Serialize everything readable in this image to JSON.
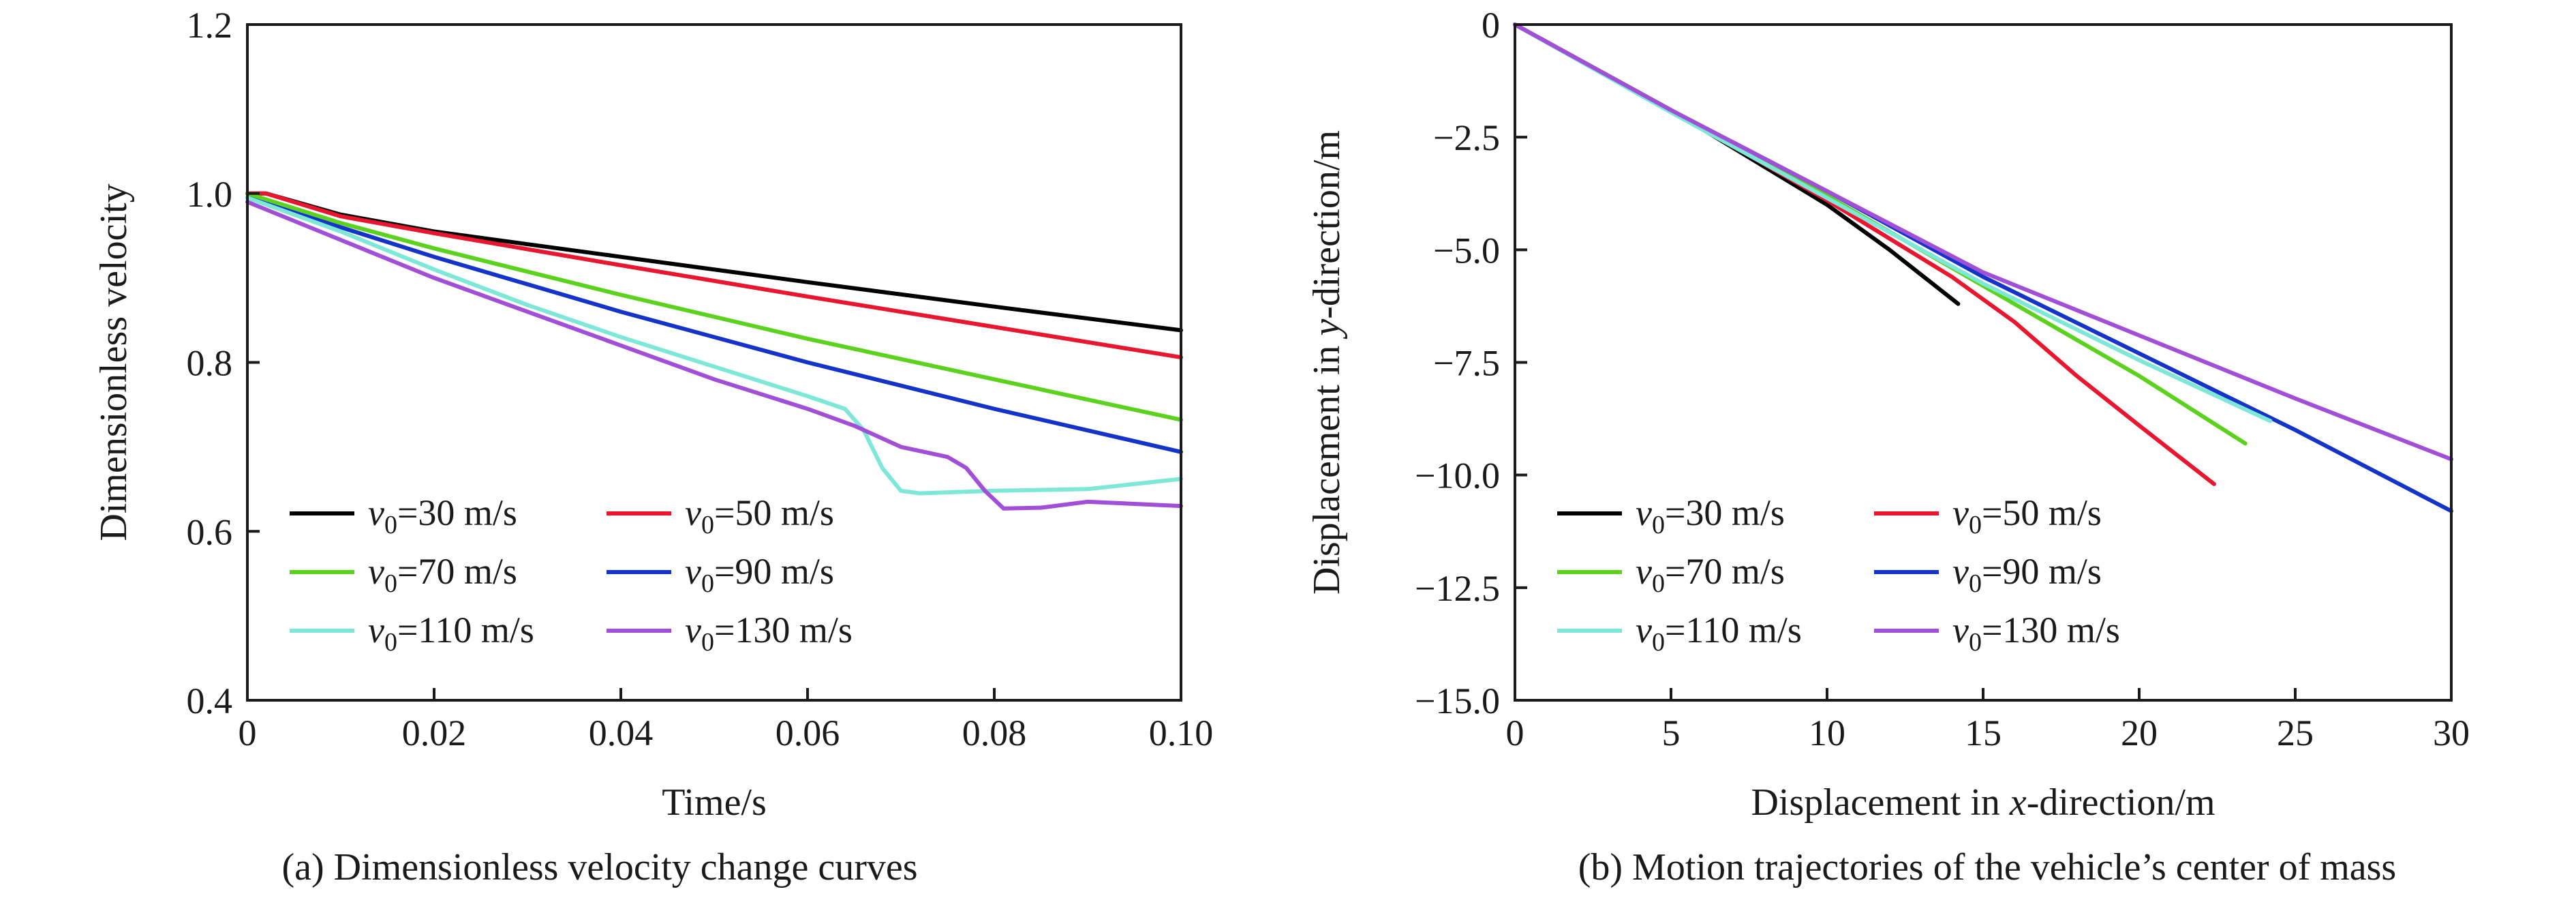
{
  "chart_data": [
    {
      "type": "line",
      "xlabel": "Time/s",
      "ylabel": "Dimensionless velocity",
      "caption": "(a) Dimensionless velocity change curves",
      "xlim": [
        0,
        0.1
      ],
      "ylim": [
        0.4,
        1.2
      ],
      "xticks": [
        "0",
        "0.02",
        "0.04",
        "0.06",
        "0.08",
        "0.10"
      ],
      "yticks": [
        "0.4",
        "0.6",
        "0.8",
        "1.0",
        "1.2"
      ],
      "grid": false,
      "legend_position": "lower-left",
      "series": [
        {
          "name": "v0=30 m/s",
          "label_var": "v",
          "label_sub": "0",
          "label_rest": "=30 m/s",
          "color": "#000000",
          "x": [
            0,
            0.002,
            0.01,
            0.02,
            0.04,
            0.06,
            0.08,
            0.1
          ],
          "y": [
            1.0,
            1.0,
            0.975,
            0.955,
            0.925,
            0.895,
            0.866,
            0.838
          ]
        },
        {
          "name": "v0=50 m/s",
          "label_var": "v",
          "label_sub": "0",
          "label_rest": "=50 m/s",
          "color": "#e8172f",
          "x": [
            0,
            0.002,
            0.01,
            0.02,
            0.04,
            0.06,
            0.08,
            0.1
          ],
          "y": [
            1.0,
            1.0,
            0.973,
            0.953,
            0.915,
            0.878,
            0.842,
            0.806
          ]
        },
        {
          "name": "v0=70 m/s",
          "label_var": "v",
          "label_sub": "0",
          "label_rest": "=70 m/s",
          "color": "#5bd21e",
          "x": [
            0,
            0.01,
            0.02,
            0.04,
            0.06,
            0.08,
            0.1
          ],
          "y": [
            1.0,
            0.965,
            0.935,
            0.88,
            0.828,
            0.78,
            0.732
          ]
        },
        {
          "name": "v0=90 m/s",
          "label_var": "v",
          "label_sub": "0",
          "label_rest": "=90 m/s",
          "color": "#1433c8",
          "x": [
            0,
            0.01,
            0.02,
            0.04,
            0.06,
            0.08,
            0.1
          ],
          "y": [
            0.995,
            0.96,
            0.925,
            0.86,
            0.8,
            0.745,
            0.694
          ]
        },
        {
          "name": "v0=110 m/s",
          "label_var": "v",
          "label_sub": "0",
          "label_rest": "=110 m/s",
          "color": "#7ee8d8",
          "x": [
            0,
            0.01,
            0.02,
            0.03,
            0.04,
            0.05,
            0.06,
            0.064,
            0.066,
            0.068,
            0.07,
            0.072,
            0.08,
            0.09,
            0.1
          ],
          "y": [
            0.995,
            0.955,
            0.91,
            0.868,
            0.83,
            0.795,
            0.76,
            0.745,
            0.72,
            0.675,
            0.648,
            0.645,
            0.648,
            0.65,
            0.662
          ]
        },
        {
          "name": "v0=130 m/s",
          "label_var": "v",
          "label_sub": "0",
          "label_rest": "=130 m/s",
          "color": "#a24fd8",
          "x": [
            0,
            0.01,
            0.02,
            0.03,
            0.04,
            0.05,
            0.06,
            0.065,
            0.07,
            0.075,
            0.077,
            0.079,
            0.081,
            0.085,
            0.09,
            0.1
          ],
          "y": [
            0.99,
            0.945,
            0.9,
            0.86,
            0.82,
            0.78,
            0.745,
            0.725,
            0.7,
            0.688,
            0.675,
            0.648,
            0.627,
            0.628,
            0.635,
            0.63
          ]
        }
      ]
    },
    {
      "type": "line",
      "xlabel_pre": "Displacement in ",
      "xlabel_var": "x",
      "xlabel_post": "-direction/m",
      "ylabel_pre": "Displacement in ",
      "ylabel_var": "y",
      "ylabel_post": "-direction/m",
      "caption": "(b) Motion trajectories of the vehicle’s center of mass",
      "xlim": [
        0,
        30
      ],
      "ylim": [
        -15.0,
        0
      ],
      "xticks": [
        "0",
        "5",
        "10",
        "15",
        "20",
        "25",
        "30"
      ],
      "yticks": [
        "0",
        "−2.5",
        "−5.0",
        "−7.5",
        "−10.0",
        "−12.5",
        "−15.0"
      ],
      "grid": false,
      "legend_position": "lower-left",
      "series": [
        {
          "name": "v0=30 m/s",
          "label_var": "v",
          "label_sub": "0",
          "label_rest": "=30 m/s",
          "color": "#000000",
          "x": [
            0,
            5,
            10,
            12,
            14.2
          ],
          "y": [
            0,
            -1.9,
            -4.0,
            -5.0,
            -6.2
          ]
        },
        {
          "name": "v0=50 m/s",
          "label_var": "v",
          "label_sub": "0",
          "label_rest": "=50 m/s",
          "color": "#e8172f",
          "x": [
            0,
            5,
            10,
            14,
            16,
            18,
            20,
            22.4
          ],
          "y": [
            0,
            -1.9,
            -3.9,
            -5.6,
            -6.6,
            -7.8,
            -8.9,
            -10.2
          ]
        },
        {
          "name": "v0=70 m/s",
          "label_var": "v",
          "label_sub": "0",
          "label_rest": "=70 m/s",
          "color": "#5bd21e",
          "x": [
            0,
            5,
            10,
            15,
            20,
            23.4
          ],
          "y": [
            0,
            -1.9,
            -3.8,
            -5.8,
            -7.8,
            -9.3
          ]
        },
        {
          "name": "v0=90 m/s",
          "label_var": "v",
          "label_sub": "0",
          "label_rest": "=90 m/s",
          "color": "#1433c8",
          "x": [
            0,
            5,
            10,
            15,
            20,
            25,
            30
          ],
          "y": [
            0,
            -1.9,
            -3.7,
            -5.6,
            -7.3,
            -9.0,
            -10.8
          ]
        },
        {
          "name": "v0=110 m/s",
          "label_var": "v",
          "label_sub": "0",
          "label_rest": "=110 m/s",
          "color": "#7ee8d8",
          "x": [
            0,
            5,
            10,
            15,
            20,
            24.2
          ],
          "y": [
            0,
            -1.95,
            -3.85,
            -5.75,
            -7.45,
            -8.8
          ]
        },
        {
          "name": "v0=130 m/s",
          "label_var": "v",
          "label_sub": "0",
          "label_rest": "=130 m/s",
          "color": "#a24fd8",
          "x": [
            0,
            5,
            10,
            15,
            20,
            25,
            30
          ],
          "y": [
            0,
            -1.9,
            -3.7,
            -5.5,
            -6.9,
            -8.3,
            -9.65
          ]
        }
      ]
    }
  ]
}
